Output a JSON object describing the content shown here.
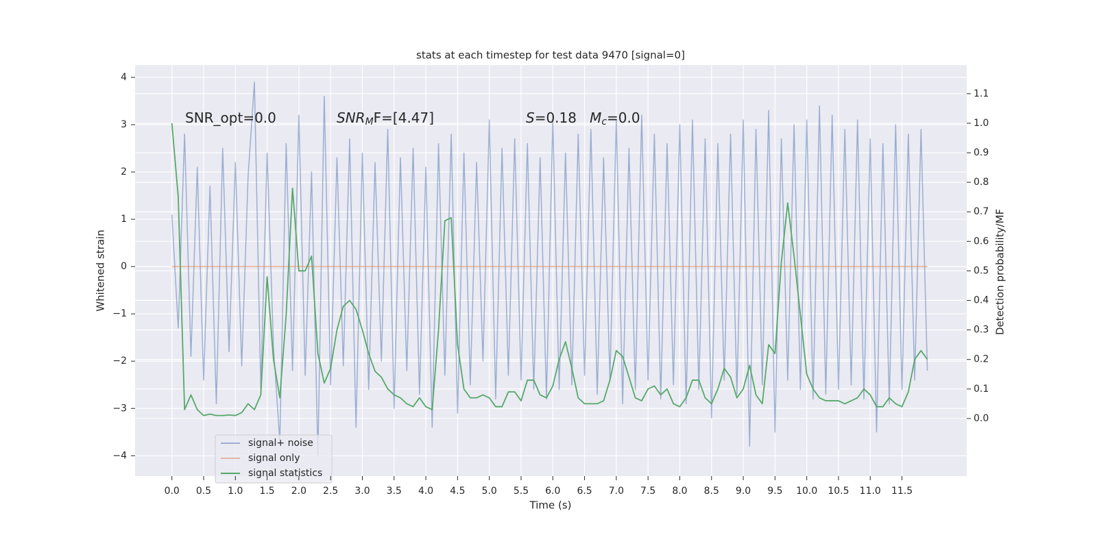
{
  "chart_data": {
    "type": "line",
    "title": "stats at each timestep for test data 9470 [signal=0]",
    "xlabel": "Time (s)",
    "ylabel": "Whitened strain",
    "y2label": "Detection probability/MF",
    "annotations": [
      [
        "SNR_opt=0.0"
      ],
      [
        "SNR",
        "M",
        "F=[4.47]"
      ],
      [
        "S",
        "=0.18   ",
        "M",
        "c",
        "=0.0"
      ]
    ],
    "legend": "lower left",
    "grid": true,
    "xlim": [
      -0.58,
      12.52
    ],
    "ylim": [
      -4.43,
      4.26
    ],
    "y2lim": [
      -0.195,
      1.197
    ],
    "xticks": [
      {
        "value": 0,
        "label": "0.0"
      },
      {
        "value": 0.5,
        "label": "0.5"
      },
      {
        "value": 1,
        "label": "1.0"
      },
      {
        "value": 1.5,
        "label": "1.5"
      },
      {
        "value": 2,
        "label": "2.0"
      },
      {
        "value": 2.5,
        "label": "2.5"
      },
      {
        "value": 3,
        "label": "3.0"
      },
      {
        "value": 3.5,
        "label": "3.5"
      },
      {
        "value": 4,
        "label": "4.0"
      },
      {
        "value": 4.5,
        "label": "4.5"
      },
      {
        "value": 5,
        "label": "5.0"
      },
      {
        "value": 5.5,
        "label": "5.5"
      },
      {
        "value": 6,
        "label": "6.0"
      },
      {
        "value": 6.5,
        "label": "6.5"
      },
      {
        "value": 7,
        "label": "7.0"
      },
      {
        "value": 7.5,
        "label": "7.5"
      },
      {
        "value": 8,
        "label": "8.0"
      },
      {
        "value": 8.5,
        "label": "8.5"
      },
      {
        "value": 9,
        "label": "9.0"
      },
      {
        "value": 9.5,
        "label": "9.5"
      },
      {
        "value": 10,
        "label": "10.0"
      },
      {
        "value": 10.5,
        "label": "10.5"
      },
      {
        "value": 11,
        "label": "11.0"
      },
      {
        "value": 11.5,
        "label": "11.5"
      }
    ],
    "yticks": [
      {
        "value": -4,
        "label": "−4"
      },
      {
        "value": -3,
        "label": "−3"
      },
      {
        "value": -2,
        "label": "−2"
      },
      {
        "value": -1,
        "label": "−1"
      },
      0,
      1,
      2,
      3,
      4
    ],
    "y2ticks": [
      {
        "value": 0,
        "label": "0.0"
      },
      {
        "value": 0.1,
        "label": "0.1"
      },
      {
        "value": 0.2,
        "label": "0.2"
      },
      {
        "value": 0.3,
        "label": "0.3"
      },
      {
        "value": 0.4,
        "label": "0.4"
      },
      {
        "value": 0.5,
        "label": "0.5"
      },
      {
        "value": 0.6,
        "label": "0.6"
      },
      {
        "value": 0.7,
        "label": "0.7"
      },
      {
        "value": 0.8,
        "label": "0.8"
      },
      {
        "value": 0.9,
        "label": "0.9"
      },
      {
        "value": 1,
        "label": "1.0"
      },
      {
        "value": 1.1,
        "label": "1.1"
      }
    ],
    "x": [
      0,
      0.1,
      0.2,
      0.3,
      0.4,
      0.5,
      0.6,
      0.7,
      0.8,
      0.9,
      1,
      1.1,
      1.2,
      1.3,
      1.4,
      1.5,
      1.6,
      1.7,
      1.8,
      1.9,
      2,
      2.1,
      2.2,
      2.3,
      2.4,
      2.5,
      2.6,
      2.7,
      2.8,
      2.9,
      3,
      3.1,
      3.2,
      3.3,
      3.4,
      3.5,
      3.6,
      3.7,
      3.8,
      3.9,
      4,
      4.1,
      4.2,
      4.3,
      4.4,
      4.5,
      4.6,
      4.7,
      4.8,
      4.9,
      5,
      5.1,
      5.2,
      5.3,
      5.4,
      5.5,
      5.6,
      5.7,
      5.8,
      5.9,
      6,
      6.1,
      6.2,
      6.3,
      6.4,
      6.5,
      6.6,
      6.7,
      6.8,
      6.9,
      7,
      7.1,
      7.2,
      7.3,
      7.4,
      7.5,
      7.6,
      7.7,
      7.8,
      7.9,
      8,
      8.1,
      8.2,
      8.3,
      8.4,
      8.5,
      8.6,
      8.7,
      8.8,
      8.9,
      9,
      9.1,
      9.2,
      9.3,
      9.4,
      9.5,
      9.6,
      9.7,
      9.8,
      9.9,
      10,
      10.1,
      10.2,
      10.3,
      10.4,
      10.5,
      10.6,
      10.7,
      10.8,
      10.9,
      11,
      11.1,
      11.2,
      11.3,
      11.4,
      11.5,
      11.6,
      11.7,
      11.8,
      11.9
    ],
    "series": [
      {
        "name": "signal+ noise",
        "color": "#4c72b0",
        "values": [
          1.1,
          -1.3,
          2.8,
          -1.9,
          2.1,
          -2.4,
          1.7,
          -2.9,
          2.5,
          -1.8,
          2.2,
          -2.1,
          1.9,
          3.9,
          -2.6,
          2.4,
          -1.7,
          -3.7,
          2.6,
          -2.2,
          3.2,
          -2.3,
          2.0,
          -4.0,
          3.6,
          -2.5,
          2.3,
          -2.1,
          2.7,
          -3.4,
          2.4,
          -2.6,
          2.2,
          -2.0,
          2.9,
          -3.0,
          2.3,
          -2.2,
          2.5,
          -2.7,
          2.1,
          -3.4,
          2.6,
          -2.3,
          2.8,
          -3.1,
          2.4,
          -2.5,
          2.2,
          -2.0,
          3.1,
          -2.8,
          2.5,
          -2.3,
          2.7,
          -2.4,
          2.6,
          -2.6,
          2.3,
          -2.8,
          3.1,
          -2.6,
          2.4,
          -2.5,
          2.8,
          -2.3,
          2.9,
          -2.7,
          2.3,
          -2.4,
          3.1,
          -2.9,
          2.5,
          -2.6,
          3.2,
          -2.4,
          2.8,
          -2.8,
          2.6,
          -2.5,
          3.0,
          -2.9,
          3.1,
          -2.6,
          2.7,
          -3.2,
          2.6,
          -2.4,
          2.8,
          -2.7,
          3.1,
          -3.8,
          2.9,
          -2.5,
          3.3,
          -3.5,
          2.7,
          -2.4,
          3.0,
          -2.6,
          3.1,
          -2.8,
          3.4,
          -2.7,
          3.2,
          -2.6,
          2.9,
          -2.5,
          3.1,
          -2.8,
          2.7,
          -3.5,
          2.6,
          -2.9,
          3.0,
          -2.6,
          2.8,
          -2.4,
          2.9,
          -2.2
        ]
      },
      {
        "name": "signal only",
        "color": "#dd8452",
        "values": [
          0,
          0,
          0,
          0,
          0,
          0,
          0,
          0,
          0,
          0,
          0,
          0,
          0,
          0,
          0,
          0,
          0,
          0,
          0,
          0,
          0,
          0,
          0,
          0,
          0,
          0,
          0,
          0,
          0,
          0,
          0,
          0,
          0,
          0,
          0,
          0,
          0,
          0,
          0,
          0,
          0,
          0,
          0,
          0,
          0,
          0,
          0,
          0,
          0,
          0,
          0,
          0,
          0,
          0,
          0,
          0,
          0,
          0,
          0,
          0,
          0,
          0,
          0,
          0,
          0,
          0,
          0,
          0,
          0,
          0,
          0,
          0,
          0,
          0,
          0,
          0,
          0,
          0,
          0,
          0,
          0,
          0,
          0,
          0,
          0,
          0,
          0,
          0,
          0,
          0,
          0,
          0,
          0,
          0,
          0,
          0,
          0,
          0,
          0,
          0,
          0,
          0,
          0,
          0,
          0,
          0,
          0,
          0,
          0,
          0,
          0,
          0,
          0,
          0,
          0,
          0,
          0,
          0,
          0,
          0
        ]
      },
      {
        "name": "signal statistics",
        "color": "#55a868",
        "axis": "y2",
        "values": [
          1.0,
          0.75,
          0.03,
          0.08,
          0.03,
          0.01,
          0.015,
          0.01,
          0.01,
          0.012,
          0.01,
          0.02,
          0.05,
          0.03,
          0.08,
          0.48,
          0.2,
          0.07,
          0.35,
          0.78,
          0.5,
          0.5,
          0.55,
          0.22,
          0.12,
          0.17,
          0.3,
          0.38,
          0.4,
          0.37,
          0.3,
          0.22,
          0.16,
          0.14,
          0.1,
          0.08,
          0.07,
          0.05,
          0.04,
          0.07,
          0.04,
          0.03,
          0.3,
          0.67,
          0.68,
          0.25,
          0.1,
          0.07,
          0.07,
          0.08,
          0.07,
          0.04,
          0.04,
          0.09,
          0.09,
          0.06,
          0.13,
          0.13,
          0.08,
          0.07,
          0.11,
          0.2,
          0.26,
          0.17,
          0.07,
          0.05,
          0.05,
          0.05,
          0.06,
          0.13,
          0.23,
          0.21,
          0.14,
          0.07,
          0.06,
          0.1,
          0.11,
          0.08,
          0.1,
          0.05,
          0.04,
          0.07,
          0.13,
          0.13,
          0.07,
          0.05,
          0.1,
          0.17,
          0.14,
          0.07,
          0.1,
          0.18,
          0.08,
          0.05,
          0.25,
          0.22,
          0.53,
          0.73,
          0.55,
          0.35,
          0.15,
          0.1,
          0.07,
          0.06,
          0.06,
          0.06,
          0.05,
          0.06,
          0.07,
          0.1,
          0.08,
          0.04,
          0.04,
          0.07,
          0.05,
          0.04,
          0.09,
          0.2,
          0.23,
          0.2
        ]
      }
    ]
  }
}
